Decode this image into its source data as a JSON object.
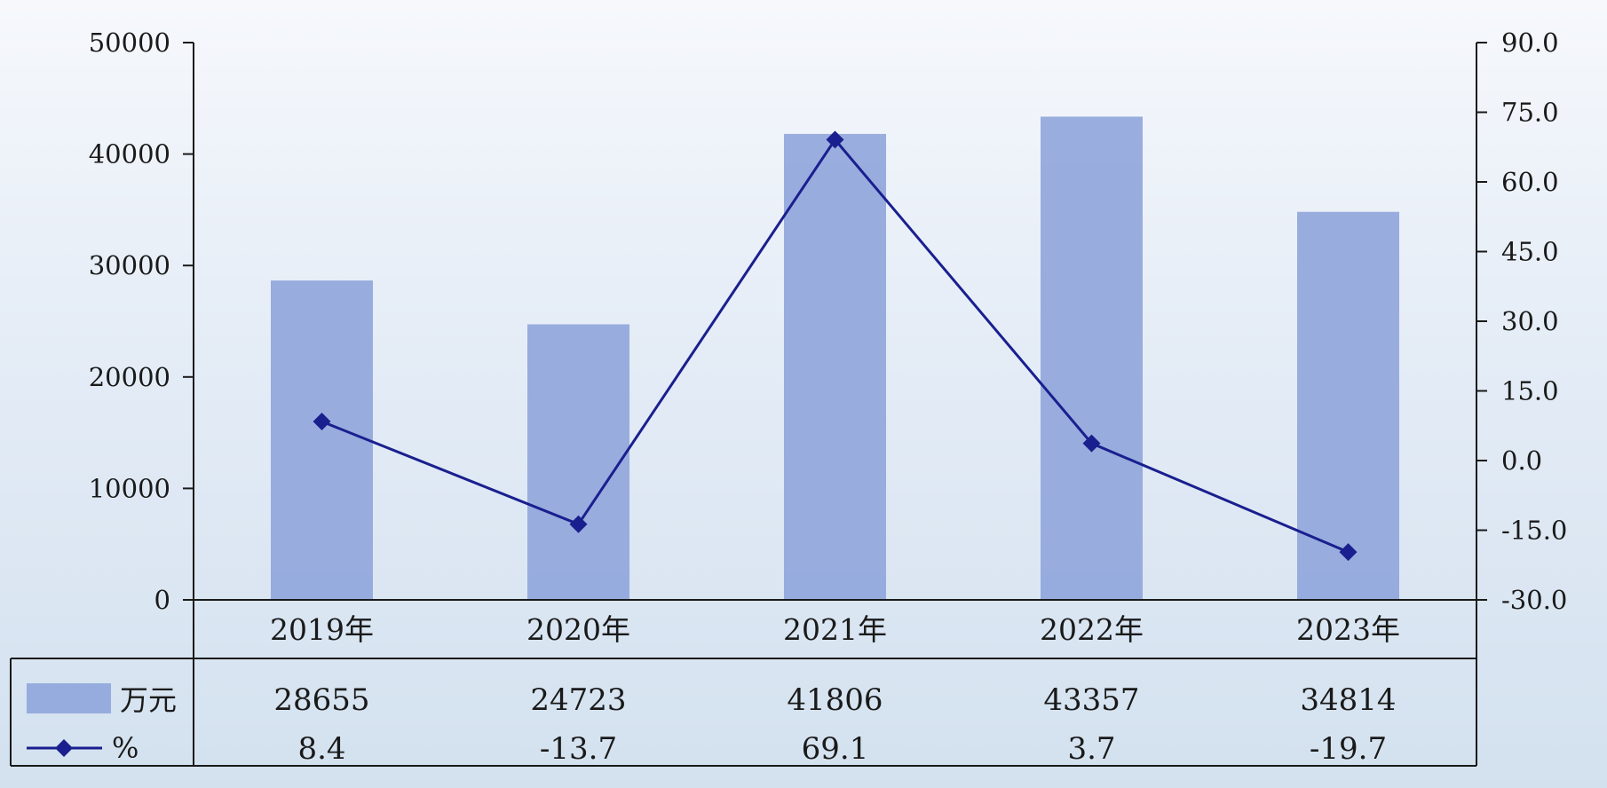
{
  "chart_data": {
    "type": "bar",
    "categories": [
      "2019年",
      "2020年",
      "2021年",
      "2022年",
      "2023年"
    ],
    "series": [
      {
        "name": "万元",
        "type": "bar",
        "axis": "left",
        "values": [
          28655,
          24723,
          41806,
          43357,
          34814
        ]
      },
      {
        "name": "%",
        "type": "line",
        "axis": "right",
        "values": [
          8.4,
          -13.7,
          69.1,
          3.7,
          -19.7
        ]
      }
    ],
    "table_values": {
      "bar": [
        "28655",
        "24723",
        "41806",
        "43357",
        "34814"
      ],
      "line": [
        "8.4",
        "-13.7",
        "69.1",
        "3.7",
        "-19.7"
      ]
    },
    "y_left": {
      "range": [
        0,
        50000
      ],
      "ticks": [
        "0",
        "10000",
        "20000",
        "30000",
        "40000",
        "50000"
      ]
    },
    "y_right": {
      "range": [
        -30,
        90
      ],
      "ticks": [
        "-30.0",
        "-15.0",
        "0.0",
        "15.0",
        "30.0",
        "45.0",
        "60.0",
        "75.0",
        "90.0"
      ]
    },
    "colors": {
      "bar": "#93a9dc",
      "line": "#1a1f8f",
      "axis": "#1a1a1a"
    },
    "legend": "data table below the chart",
    "grid": false
  }
}
